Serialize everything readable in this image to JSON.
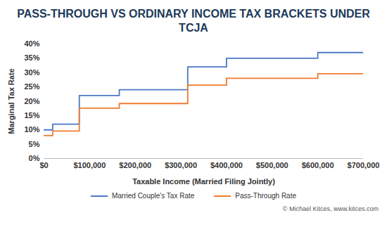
{
  "chart_data": {
    "type": "line",
    "title": "PASS-THROUGH VS ORDINARY INCOME TAX BRACKETS UNDER TCJA",
    "x_label": "Taxable Income (Married Filing Jointly)",
    "y_label": "Marginal Tax Rate",
    "x": [
      0,
      19050,
      77400,
      165000,
      315000,
      400000,
      600000,
      700000
    ],
    "series": [
      {
        "name": "Married Couple's Tax Rate",
        "color": "#4a78c4",
        "line_style": "step",
        "values": [
          10,
          12,
          22,
          24,
          32,
          35,
          37,
          37
        ]
      },
      {
        "name": "Pass-Through Rate",
        "color": "#f07b2e",
        "line_style": "step",
        "values": [
          8,
          9.6,
          17.6,
          19.2,
          25.6,
          28,
          29.6,
          29.6
        ]
      }
    ],
    "xlim": [
      0,
      700000
    ],
    "xticks": [
      {
        "value": 0,
        "label": "$0"
      },
      {
        "value": 100000,
        "label": "$100,000"
      },
      {
        "value": 200000,
        "label": "$200,000"
      },
      {
        "value": 300000,
        "label": "$300,000"
      },
      {
        "value": 400000,
        "label": "$400,000"
      },
      {
        "value": 500000,
        "label": "$500,000"
      },
      {
        "value": 600000,
        "label": "$600,000"
      },
      {
        "value": 700000,
        "label": "$700,000"
      }
    ],
    "ylim": [
      0,
      40
    ],
    "yticks": [
      {
        "value": 0,
        "label": "0%"
      },
      {
        "value": 5,
        "label": "5%"
      },
      {
        "value": 10,
        "label": "10%"
      },
      {
        "value": 15,
        "label": "15%"
      },
      {
        "value": 20,
        "label": "20%"
      },
      {
        "value": 25,
        "label": "25%"
      },
      {
        "value": 30,
        "label": "30%"
      },
      {
        "value": 35,
        "label": "35%"
      },
      {
        "value": 40,
        "label": "40%"
      }
    ],
    "grid": false,
    "legend": "bottom",
    "annotations": [
      "© Michael Kitces, www.kitces.com"
    ]
  }
}
